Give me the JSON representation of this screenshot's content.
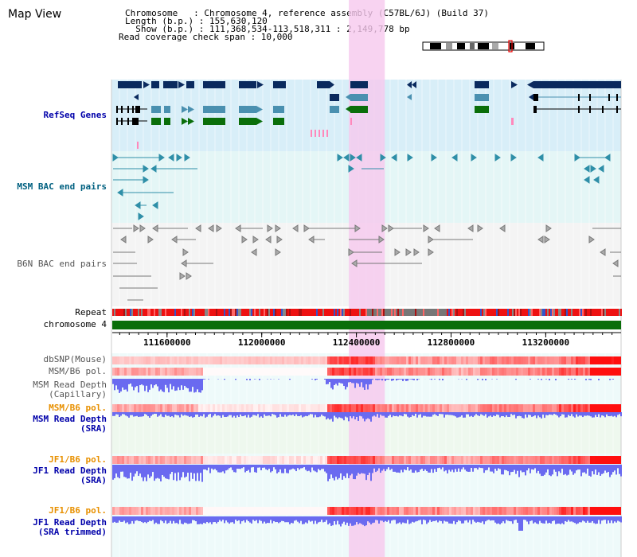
{
  "window": {
    "title": "Map View"
  },
  "header": {
    "chromosome_line": "Chromosome   : Chromosome 4, reference assembly (C57BL/6J) (Build 37)",
    "length_line": "Length (b.p.) : 155,630,120",
    "show_line": "  Show (b.p.) : 111,368,534-113,518,311 : 2,149,778 bp",
    "coverage_line": "Read coverage check span : 10,000"
  },
  "tracks": {
    "refseq": "RefSeq Genes",
    "msm_bac": "MSM BAC end pairs",
    "b6n_bac": "B6N BAC end pairs",
    "repeat": "Repeat",
    "chromosome": "chromosome 4",
    "dbsnp": "dbSNP(Mouse)",
    "msm_b6_pol": "MSM/B6 pol.",
    "msm_depth_cap": "MSM Read Depth\n(Capillary)",
    "msm_b6_pol2": "MSM/B6 pol.",
    "msm_depth_sra": "MSM Read Depth\n(SRA)",
    "jf1_b6_pol": "JF1/B6 pol.",
    "jf1_depth_sra": "JF1 Read Depth\n(SRA)",
    "jf1_b6_pol2": "JF1/B6 pol.",
    "jf1_depth_trim": "JF1 Read Depth\n(SRA trimmed)"
  },
  "axis": {
    "range": [
      111368534,
      113518311
    ],
    "ticks": [
      {
        "value": 111600000,
        "label": "111600000"
      },
      {
        "value": 112000000,
        "label": "112000000"
      },
      {
        "value": 112400000,
        "label": "112400000"
      },
      {
        "value": 112800000,
        "label": "112800000"
      },
      {
        "value": 113200000,
        "label": "113200000"
      }
    ]
  },
  "highlight": {
    "start": 112368000,
    "end": 112520000
  },
  "colors": {
    "navy": "#0a2a5e",
    "steelblue": "#4a90b0",
    "green": "#0a6e0a",
    "bac_msm": "#2f8fa8",
    "bac_b6n": "#777777",
    "red": "#ee1111",
    "pink_band": "#f6c8ee",
    "depth_blue": "#6a6af0"
  }
}
